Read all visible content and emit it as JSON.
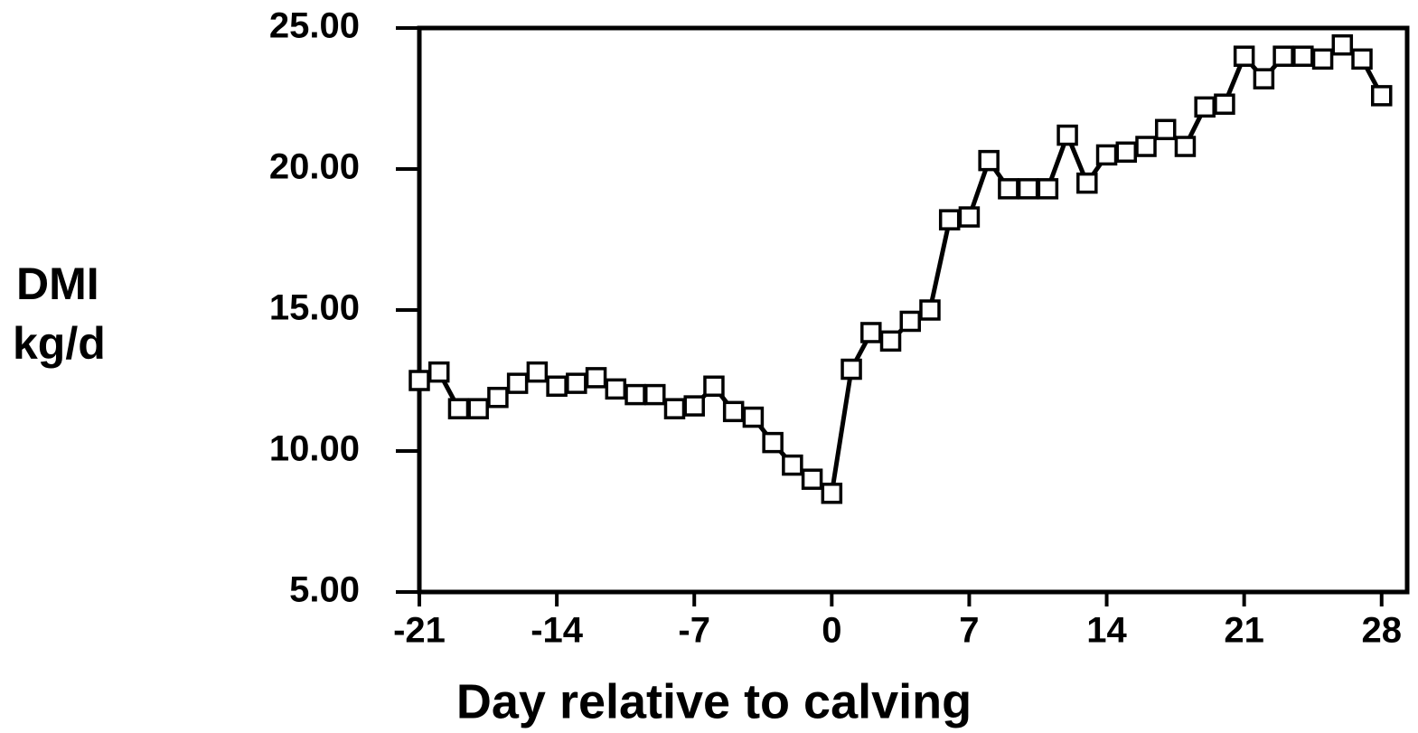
{
  "chart_data": {
    "type": "line",
    "x_label": "Day relative to calving",
    "y_label": [
      "DMI",
      "kg/d"
    ],
    "x": [
      -21,
      -20,
      -19,
      -18,
      -17,
      -16,
      -15,
      -14,
      -13,
      -12,
      -11,
      -10,
      -9,
      -8,
      -7,
      -6,
      -5,
      -4,
      -3,
      -2,
      -1,
      0,
      1,
      2,
      3,
      4,
      5,
      6,
      7,
      8,
      9,
      10,
      11,
      12,
      13,
      14,
      15,
      16,
      17,
      18,
      19,
      20,
      21,
      22,
      23,
      24,
      25,
      26,
      27,
      28
    ],
    "series": [
      {
        "color": "#000000",
        "values": [
          12.5,
          12.8,
          11.5,
          11.5,
          11.9,
          12.4,
          12.8,
          12.3,
          12.4,
          12.6,
          12.2,
          12.0,
          12.0,
          11.5,
          11.6,
          12.3,
          11.4,
          11.2,
          10.3,
          9.5,
          9.0,
          8.5,
          12.9,
          14.2,
          13.9,
          14.6,
          15.0,
          18.2,
          18.3,
          20.3,
          19.3,
          19.3,
          19.3,
          21.2,
          19.5,
          20.5,
          20.6,
          20.8,
          21.4,
          20.8,
          22.2,
          22.3,
          24.0,
          23.2,
          24.0,
          24.0,
          23.9,
          24.4,
          23.9,
          22.6
        ]
      }
    ],
    "xlim": [
      -21,
      29.3
    ],
    "ylim": [
      5,
      25
    ],
    "xticks": [
      -21,
      -14,
      -7,
      0,
      7,
      14,
      21,
      28
    ],
    "yticks": [
      {
        "value": 5,
        "label": "5.00"
      },
      {
        "value": 10,
        "label": "10.00"
      },
      {
        "value": 15,
        "label": "15.00"
      },
      {
        "value": 20,
        "label": "20.00"
      },
      {
        "value": 25,
        "label": "25.00"
      }
    ],
    "grid": false
  }
}
